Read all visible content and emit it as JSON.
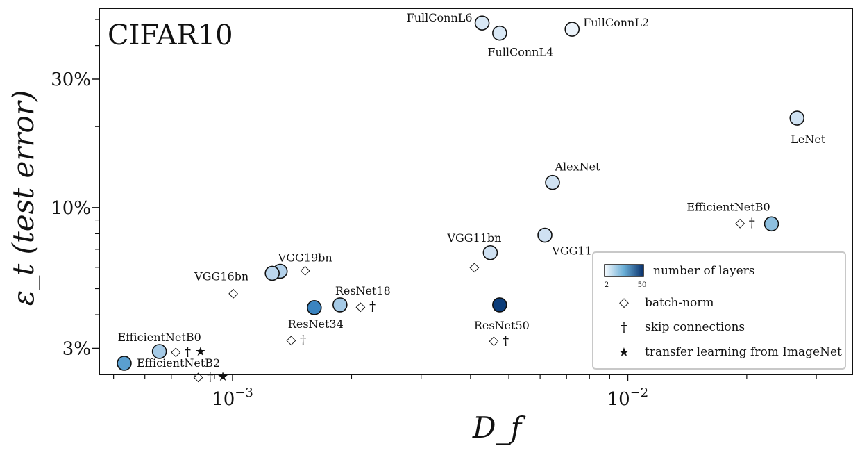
{
  "chart_data": {
    "type": "scatter",
    "title": "CIFAR10",
    "xlabel": "D_f",
    "ylabel": "ε_t (test error)",
    "xscale": "log",
    "yscale": "log",
    "xlim": [
      0.00046,
      0.037
    ],
    "ylim": [
      0.024,
      0.55
    ],
    "xticks": [
      {
        "value": 0.001,
        "base": "10",
        "exp": "−3"
      },
      {
        "value": 0.01,
        "base": "10",
        "exp": "−2"
      }
    ],
    "yticks": [
      {
        "value": 0.03,
        "label": "3%"
      },
      {
        "value": 0.1,
        "label": "10%"
      },
      {
        "value": 0.3,
        "label": "30%"
      }
    ],
    "points": [
      {
        "name": "FullConnL6",
        "x": 0.00428,
        "y": 0.485,
        "color": "#d9e8f5",
        "markers": ""
      },
      {
        "name": "FullConnL4",
        "x": 0.00474,
        "y": 0.445,
        "color": "#d9e8f5",
        "markers": ""
      },
      {
        "name": "FullConnL2",
        "x": 0.00723,
        "y": 0.46,
        "color": "#edf4fb",
        "markers": ""
      },
      {
        "name": "LeNet",
        "x": 0.0268,
        "y": 0.215,
        "color": "#d0e2f2",
        "markers": ""
      },
      {
        "name": "AlexNet",
        "x": 0.00645,
        "y": 0.124,
        "color": "#d0e2f2",
        "markers": ""
      },
      {
        "name": "EfficientNetB0",
        "x": 0.0231,
        "y": 0.087,
        "color": "#8dbfdf",
        "markers": "◇ †"
      },
      {
        "name": "VGG11",
        "x": 0.00617,
        "y": 0.079,
        "color": "#cfe1f2",
        "markers": ""
      },
      {
        "name": "VGG11bn",
        "x": 0.00449,
        "y": 0.068,
        "color": "#cfe1f2",
        "markers": "◇"
      },
      {
        "name": "VGG19bn",
        "x": 0.00132,
        "y": 0.058,
        "color": "#b3d1ea",
        "markers": "◇"
      },
      {
        "name": "VGG16bn",
        "x": 0.00126,
        "y": 0.057,
        "color": "#bcd7ee",
        "markers": "◇"
      },
      {
        "name": "ResNet18",
        "x": 0.00187,
        "y": 0.0435,
        "color": "#a5cae6",
        "markers": "◇ †"
      },
      {
        "name": "ResNet34",
        "x": 0.00161,
        "y": 0.0425,
        "color": "#3b84c0",
        "markers": "◇ †"
      },
      {
        "name": "ResNet50",
        "x": 0.00474,
        "y": 0.0435,
        "color": "#0c3d7a",
        "markers": "◇ †"
      },
      {
        "name": "EfficientNetB0",
        "x": 0.000653,
        "y": 0.0292,
        "color": "#a5cae6",
        "markers": "◇ † ★"
      },
      {
        "name": "EfficientNetB2",
        "x": 0.000532,
        "y": 0.0264,
        "color": "#5a9fd0",
        "markers": "◇ † ★"
      }
    ],
    "legend": {
      "placement": "bottom-right",
      "colorbar_label": "number of layers",
      "colorbar_min": "2",
      "colorbar_max": "50",
      "items": [
        {
          "symbol": "◇",
          "label": "batch-norm"
        },
        {
          "symbol": "†",
          "label": "skip connections"
        },
        {
          "symbol": "★",
          "label": "transfer learning from ImageNet"
        }
      ]
    }
  }
}
